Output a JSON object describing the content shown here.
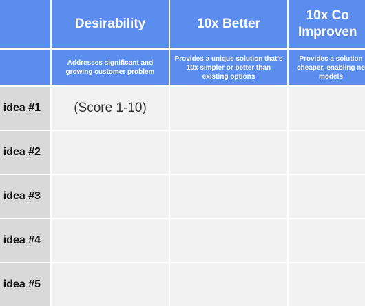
{
  "columns": [
    {
      "title": "Desirability",
      "description": "Addresses significant and growing customer problem"
    },
    {
      "title": "10x Better",
      "description": "Provides a unique solution that’s 10x simpler or better than existing options"
    },
    {
      "title_line1": "10x Co",
      "title_line2": "Improven",
      "description_line1": "Provides a solution",
      "description_line2": "cheaper, enabling ne",
      "description_line3": "models"
    }
  ],
  "rows": [
    {
      "label": "idea #1",
      "score_hint": "(Score 1-10)"
    },
    {
      "label": "idea #2"
    },
    {
      "label": "idea #3"
    },
    {
      "label": "idea #4"
    },
    {
      "label": "idea #5"
    }
  ],
  "colors": {
    "header": "#5b8def",
    "row_label_bg": "#d9d9d9",
    "body_bg": "#f2f2f2"
  }
}
